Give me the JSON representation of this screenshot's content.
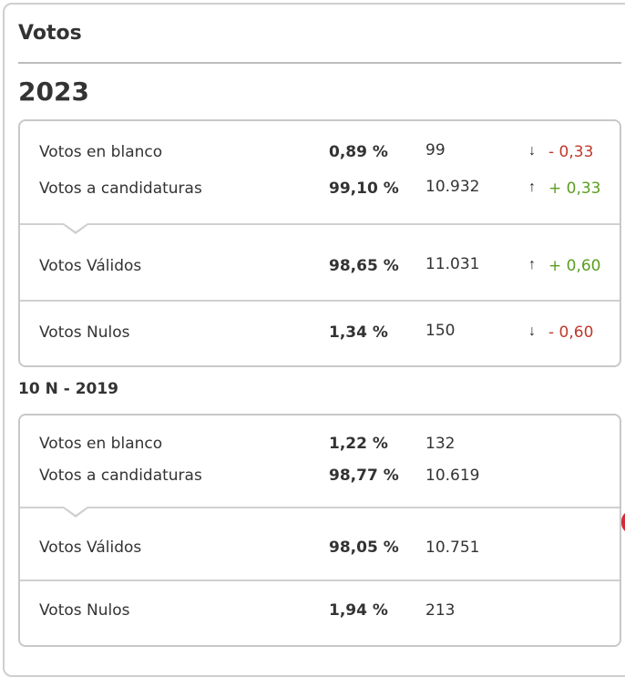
{
  "panel": {
    "title": "Votos"
  },
  "sections": [
    {
      "year": "2023",
      "rows": [
        {
          "label": "Votos en blanco",
          "pct": "0,89 %",
          "count": "99",
          "arrow": "↓",
          "diff": "- 0,33",
          "trend": "down"
        },
        {
          "label": "Votos a candidaturas",
          "pct": "99,10 %",
          "count": "10.932",
          "arrow": "↑",
          "diff": "+ 0,33",
          "trend": "up"
        },
        {
          "label": "Votos Válidos",
          "pct": "98,65 %",
          "count": "11.031",
          "arrow": "↑",
          "diff": "+ 0,60",
          "trend": "up"
        },
        {
          "label": "Votos Nulos",
          "pct": "1,34 %",
          "count": "150",
          "arrow": "↓",
          "diff": "- 0,60",
          "trend": "down"
        }
      ]
    },
    {
      "year": "10 N - 2019",
      "rows": [
        {
          "label": "Votos en blanco",
          "pct": "1,22 %",
          "count": "132"
        },
        {
          "label": "Votos a candidaturas",
          "pct": "98,77 %",
          "count": "10.619"
        },
        {
          "label": "Votos Válidos",
          "pct": "98,05 %",
          "count": "10.751"
        },
        {
          "label": "Votos Nulos",
          "pct": "1,94 %",
          "count": "213"
        }
      ]
    }
  ],
  "colors": {
    "negative": "#c0392b",
    "positive": "#5a9e1f",
    "border": "#c8c8c8"
  }
}
